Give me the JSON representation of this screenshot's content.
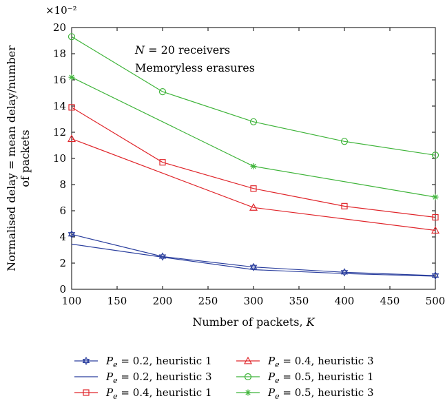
{
  "chart_data": {
    "type": "line",
    "xlabel": "Number of packets, K",
    "ylabel": "Normalised delay = mean delay/number of packets",
    "ylabel_lines": [
      "Normalised delay = mean delay/number",
      "of packets"
    ],
    "y_multiplier": "×10⁻²",
    "xlim": [
      100,
      500
    ],
    "ylim": [
      0,
      20
    ],
    "x_ticks": [
      100,
      150,
      200,
      250,
      300,
      350,
      400,
      450,
      500
    ],
    "y_ticks": [
      0,
      2,
      4,
      6,
      8,
      10,
      12,
      14,
      16,
      18,
      20
    ],
    "grid": false,
    "legend_position": "bottom",
    "annotations": [
      "N = 20 receivers",
      "Memoryless erasures"
    ],
    "x": [
      100,
      200,
      300,
      400,
      500
    ],
    "series": [
      {
        "name": "Pe = 0.2, heuristic 1",
        "label_tail": " = 0.2, heuristic 1",
        "color": "#2b3f9e",
        "marker": "hexagram",
        "values": [
          4.2,
          2.5,
          1.7,
          1.3,
          1.05
        ]
      },
      {
        "name": "Pe = 0.2, heuristic 3",
        "label_tail": " = 0.2, heuristic 3",
        "color": "#2b3f9e",
        "marker": "none",
        "values": [
          3.45,
          2.45,
          1.5,
          1.2,
          1.0
        ]
      },
      {
        "name": "Pe = 0.4, heuristic 1",
        "label_tail": " = 0.4, heuristic 1",
        "color": "#e0262b",
        "marker": "square",
        "values": [
          13.9,
          9.7,
          7.7,
          6.35,
          5.5
        ]
      },
      {
        "name": "Pe = 0.4, heuristic 3",
        "label_tail": " = 0.4, heuristic 3",
        "color": "#e0262b",
        "marker": "triangle",
        "values": [
          11.5,
          null,
          6.25,
          null,
          4.5
        ]
      },
      {
        "name": "Pe = 0.5, heuristic 1",
        "label_tail": " = 0.5, heuristic 1",
        "color": "#3fb43a",
        "marker": "circle",
        "values": [
          19.3,
          15.1,
          12.8,
          11.3,
          10.25
        ]
      },
      {
        "name": "Pe = 0.5, heuristic 3",
        "label_tail": " = 0.5, heuristic 3",
        "color": "#3fb43a",
        "marker": "asterisk",
        "values": [
          16.2,
          null,
          9.4,
          null,
          7.05
        ]
      }
    ]
  }
}
